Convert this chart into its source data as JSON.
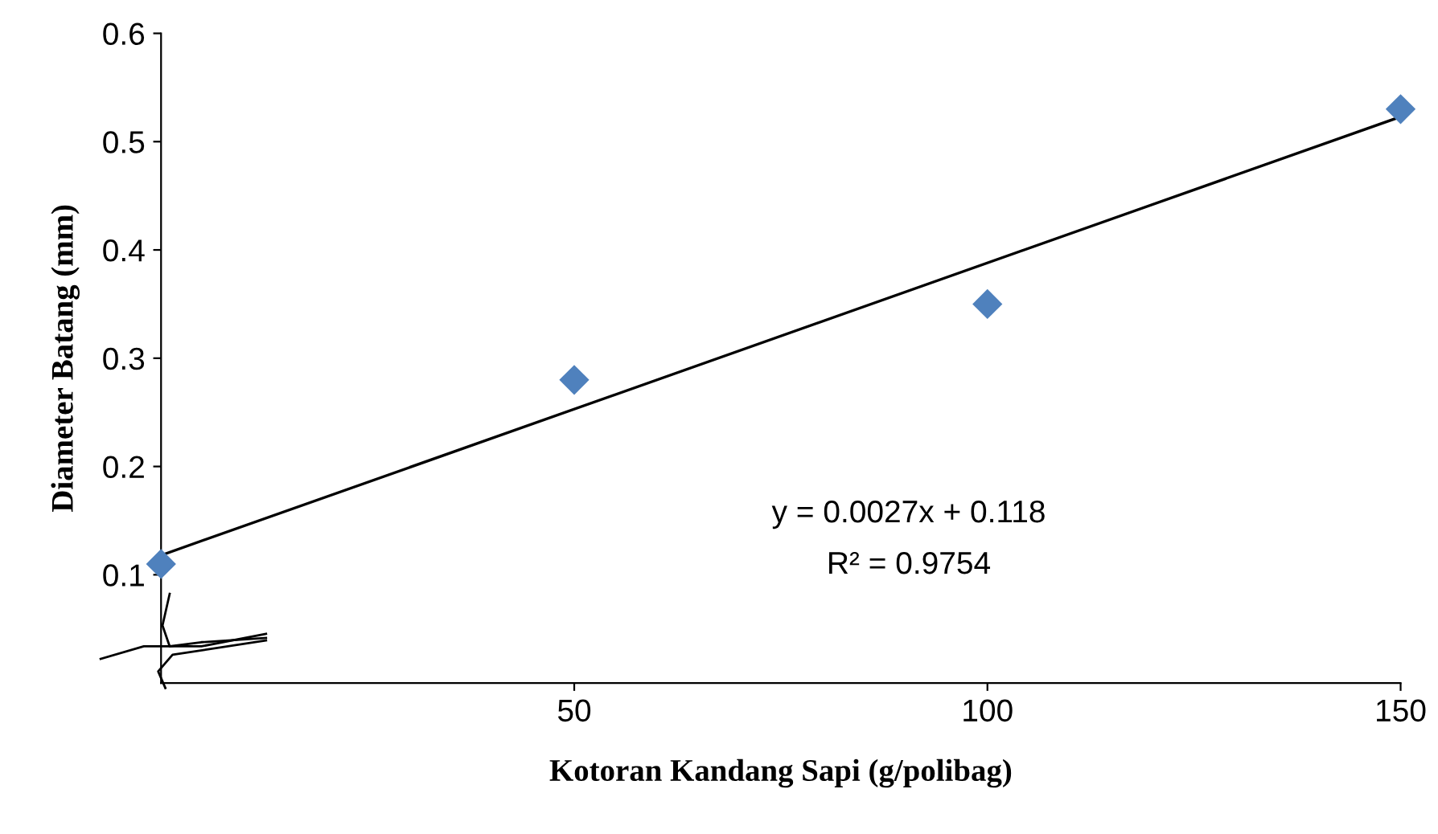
{
  "chart_data": {
    "type": "scatter",
    "xlabel": "Kotoran Kandang Sapi (g/polibag)",
    "ylabel": "Diameter Batang (mm)",
    "xlim": [
      0,
      150
    ],
    "ylim": [
      0,
      0.6
    ],
    "xticks": [
      50,
      100,
      150
    ],
    "yticks": [
      0.1,
      0.2,
      0.3,
      0.4,
      0.5,
      0.6
    ],
    "grid": false,
    "legend": false,
    "series": [
      {
        "color": "#4f81bd",
        "marker": "diamond",
        "x": [
          0,
          50,
          100,
          150
        ],
        "values": [
          0.11,
          0.28,
          0.35,
          0.53
        ]
      },
      {
        "type": "line",
        "color": "#000000",
        "marker": "none",
        "line_style": "solid",
        "x": [
          0,
          150
        ],
        "values": [
          0.118,
          0.523
        ]
      }
    ],
    "annotations": [
      "y = 0.0027x + 0.118",
      "R² = 0.9754"
    ]
  }
}
